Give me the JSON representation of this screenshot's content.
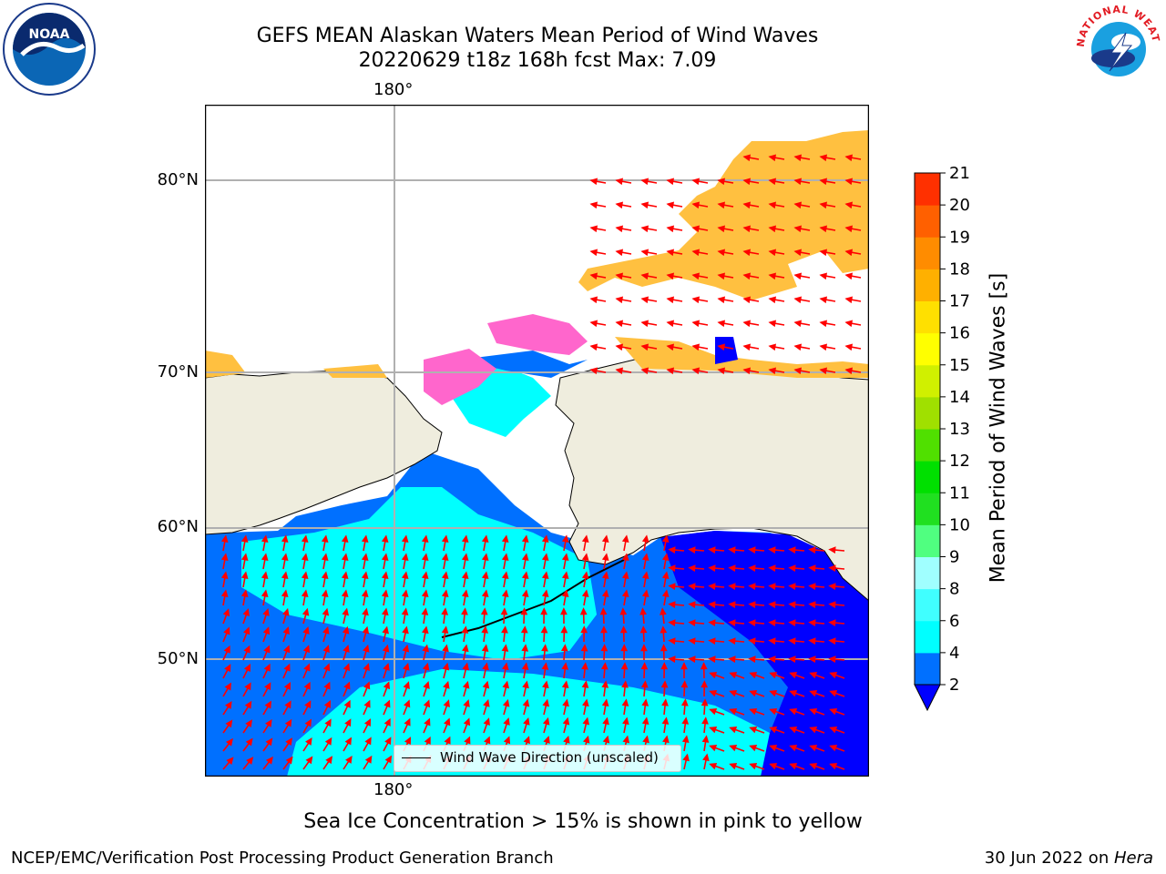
{
  "header": {
    "title_line1": "GEFS MEAN Alaskan Waters Mean Period of Wind Waves",
    "title_line2": "20220629 t18z 168h fcst   Max: 7.09"
  },
  "logos": {
    "left": "NOAA",
    "left_ring": "NATIONAL OCEANIC AND ATMOSPHERIC ADMINISTRATION · U.S. DEPARTMENT OF COMMERCE",
    "right_ring": "NATIONAL WEATHER SERVICE"
  },
  "map": {
    "lon_label_top": "180°",
    "lon_label_bottom": "180°",
    "lat_labels": [
      "80°N",
      "70°N",
      "60°N",
      "50°N"
    ],
    "colors": {
      "land": "#efedde",
      "ocean_low": "#0070ff",
      "ocean_mid": "#00ffff",
      "ocean_min": "#0000ff",
      "ice": "#ffc040",
      "ice_edge": "#ff66cc",
      "arrow": "#ff0000"
    },
    "legend_label": "Wind Wave Direction (unscaled)"
  },
  "colorbar": {
    "label": "Mean Period of Wind Waves [s]",
    "ticks": [
      "2",
      "4",
      "6",
      "8",
      "9",
      "10",
      "11",
      "12",
      "13",
      "14",
      "15",
      "16",
      "17",
      "18",
      "19",
      "20",
      "21"
    ],
    "colors": [
      "#0070ff",
      "#00ffff",
      "#40ffff",
      "#a0ffff",
      "#50ff80",
      "#20e020",
      "#00e000",
      "#50e000",
      "#a0e000",
      "#d0f000",
      "#ffff00",
      "#ffe000",
      "#ffb000",
      "#ff8c00",
      "#ff6000",
      "#ff3000",
      "#ff0000"
    ],
    "under_color": "#0000ff"
  },
  "caption": "Sea Ice Concentration > 15% is shown in pink to yellow",
  "footer": {
    "left": "NCEP/EMC/Verification Post Processing Product Generation Branch",
    "right_prefix": "30 Jun 2022 on ",
    "right_host": "Hera"
  }
}
